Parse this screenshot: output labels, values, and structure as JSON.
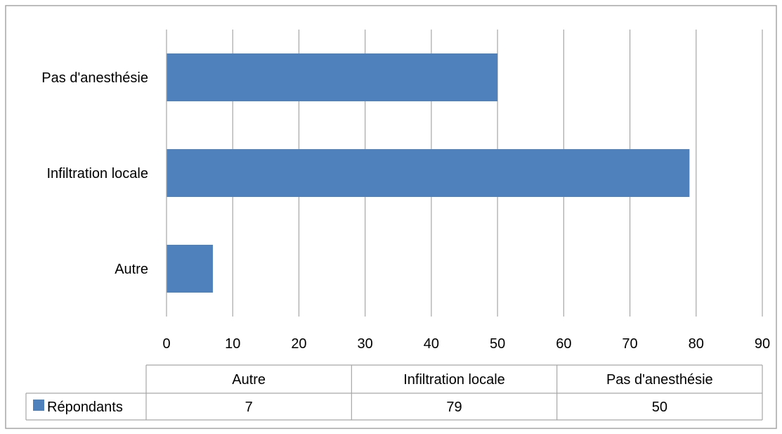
{
  "chart_data": {
    "type": "bar",
    "orientation": "horizontal",
    "categories": [
      "Autre",
      "Infiltration locale",
      "Pas d'anesthésie"
    ],
    "series": [
      {
        "name": "Répondants",
        "values": [
          7,
          79,
          50
        ],
        "color": "#4f81bd"
      }
    ],
    "xlim": [
      0,
      90
    ],
    "x_ticks": [
      0,
      10,
      20,
      30,
      40,
      50,
      60,
      70,
      80,
      90
    ],
    "grid": true,
    "data_table": true,
    "title": "",
    "xlabel": "",
    "ylabel": ""
  }
}
